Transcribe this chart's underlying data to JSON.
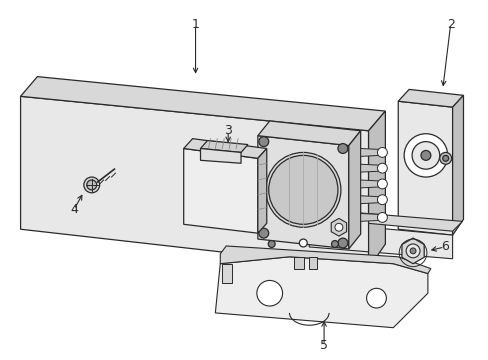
{
  "background_color": "#ffffff",
  "fig_width": 4.89,
  "fig_height": 3.6,
  "dpi": 100,
  "line_color": "#2a2a2a",
  "panel_fill": "#e8e8e8",
  "part_fill": "#f0f0f0",
  "white": "#ffffff",
  "gray_light": "#d8d8d8",
  "gray_mid": "#c0c0c0"
}
